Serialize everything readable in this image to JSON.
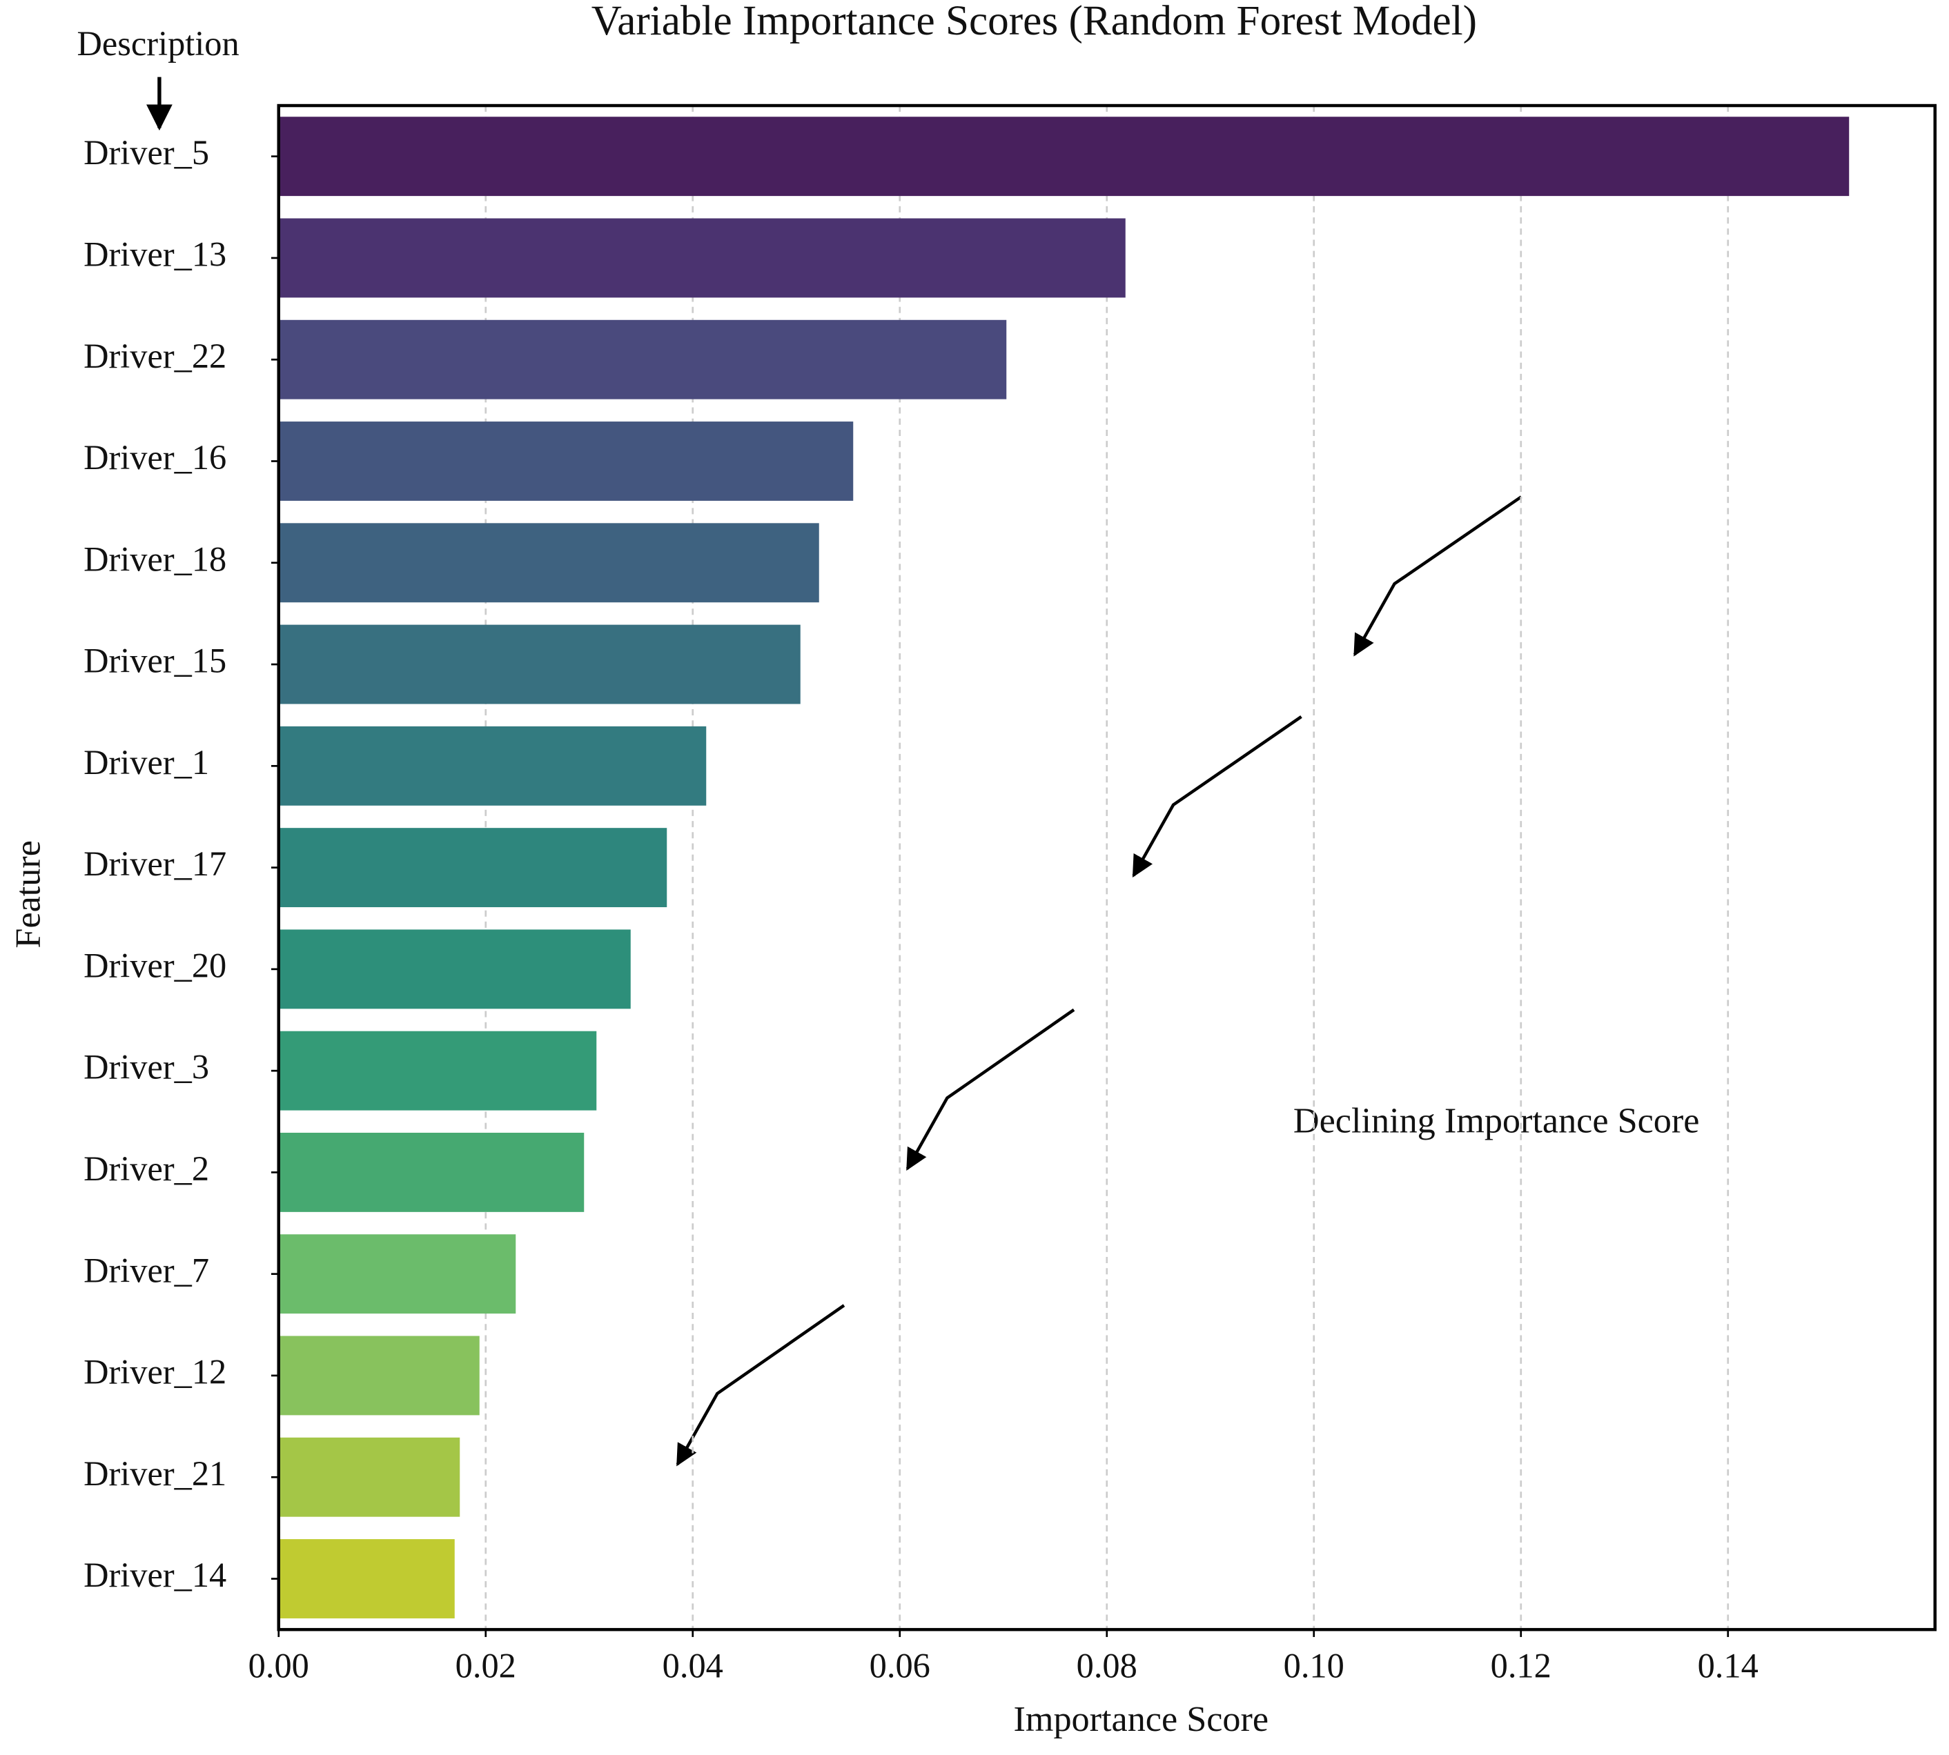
{
  "chart_data": {
    "type": "bar",
    "orientation": "horizontal",
    "title": "Variable Importance Scores (Random Forest Model)",
    "xlabel": "Importance Score",
    "ylabel": "Feature",
    "annotations": [
      "Description",
      "Declining Importance Score"
    ],
    "categories": [
      "Driver_5",
      "Driver_13",
      "Driver_22",
      "Driver_16",
      "Driver_18",
      "Driver_15",
      "Driver_1",
      "Driver_17",
      "Driver_20",
      "Driver_3",
      "Driver_2",
      "Driver_7",
      "Driver_12",
      "Driver_21",
      "Driver_14"
    ],
    "values": [
      0.1517,
      0.0818,
      0.0703,
      0.0555,
      0.0522,
      0.0504,
      0.0413,
      0.0375,
      0.034,
      0.0307,
      0.0295,
      0.0229,
      0.0194,
      0.0175,
      0.017
    ],
    "colors": [
      "#48205d",
      "#4b3370",
      "#4a4a7d",
      "#44567f",
      "#3e6280",
      "#387080",
      "#337b80",
      "#2e867d",
      "#2d8f7a",
      "#349b77",
      "#46a971",
      "#6bbc6b",
      "#88c25d",
      "#a4c647",
      "#c0cb31"
    ],
    "xlim": [
      0,
      0.16
    ],
    "xticks": [
      {
        "value": 0,
        "label": "0.00"
      },
      0.02,
      0.04,
      0.06,
      0.08,
      {
        "value": 0.1,
        "label": "0.10"
      },
      0.12,
      0.14
    ],
    "grid": true
  }
}
